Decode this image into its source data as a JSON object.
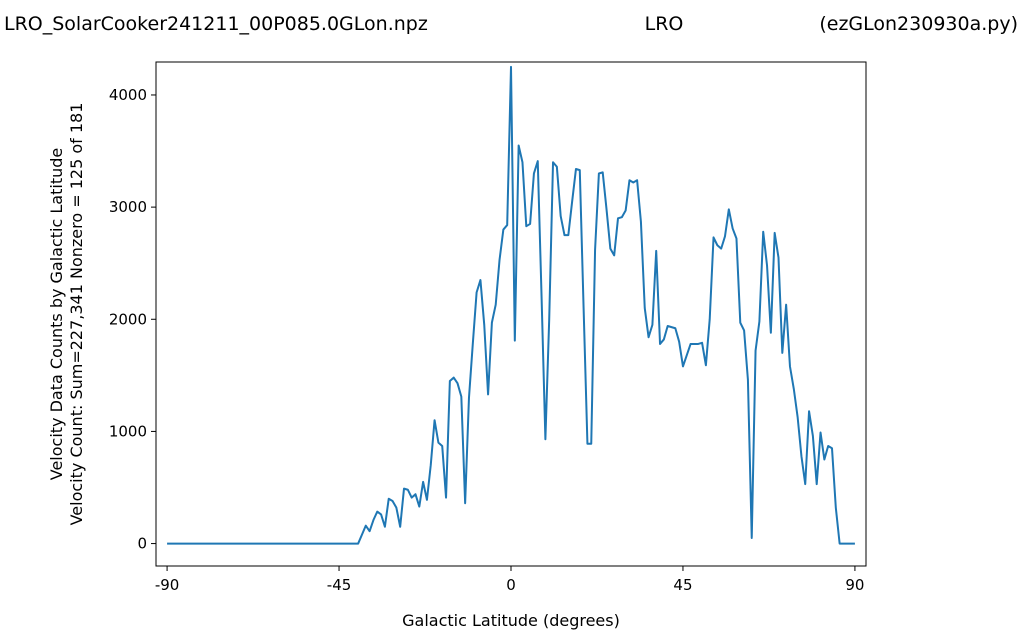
{
  "chart_data": {
    "type": "line",
    "title_left": "LRO_SolarCooker241211_00P085.0GLon.npz",
    "title_center": "LRO",
    "title_right": "(ezGLon230930a.py)",
    "xlabel": "Galactic Latitude (degrees)",
    "ylabel": [
      "Velocity Data Counts by Galactic Latitude",
      "Velocity Count: Sum=227,341 Nonzero = 125 of 181"
    ],
    "x": [
      -90,
      -89,
      -88,
      -87,
      -86,
      -85,
      -84,
      -83,
      -82,
      -81,
      -80,
      -79,
      -78,
      -77,
      -76,
      -75,
      -74,
      -73,
      -72,
      -71,
      -70,
      -69,
      -68,
      -67,
      -66,
      -65,
      -64,
      -63,
      -62,
      -61,
      -60,
      -59,
      -58,
      -57,
      -56,
      -55,
      -54,
      -53,
      -52,
      -51,
      -50,
      -49,
      -48,
      -47,
      -46,
      -45,
      -44,
      -43,
      -42,
      -41,
      -40,
      -39,
      -38,
      -37,
      -36,
      -35,
      -34,
      -33,
      -32,
      -31,
      -30,
      -29,
      -28,
      -27,
      -26,
      -25,
      -24,
      -23,
      -22,
      -21,
      -20,
      -19,
      -18,
      -17,
      -16,
      -15,
      -14,
      -13,
      -12,
      -11,
      -10,
      -9,
      -8,
      -7,
      -6,
      -5,
      -4,
      -3,
      -2,
      -1,
      0,
      1,
      2,
      3,
      4,
      5,
      6,
      7,
      8,
      9,
      10,
      11,
      12,
      13,
      14,
      15,
      16,
      17,
      18,
      19,
      20,
      21,
      22,
      23,
      24,
      25,
      26,
      27,
      28,
      29,
      30,
      31,
      32,
      33,
      34,
      35,
      36,
      37,
      38,
      39,
      40,
      41,
      42,
      43,
      44,
      45,
      46,
      47,
      48,
      49,
      50,
      51,
      52,
      53,
      54,
      55,
      56,
      57,
      58,
      59,
      60,
      61,
      62,
      63,
      64,
      65,
      66,
      67,
      68,
      69,
      70,
      71,
      72,
      73,
      74,
      75,
      76,
      77,
      78,
      79,
      80,
      81,
      82,
      83,
      84,
      85,
      86,
      87,
      88,
      89,
      90
    ],
    "series": [
      {
        "color": "#1f77b4",
        "values": [
          0,
          0,
          0,
          0,
          0,
          0,
          0,
          0,
          0,
          0,
          0,
          0,
          0,
          0,
          0,
          0,
          0,
          0,
          0,
          0,
          0,
          0,
          0,
          0,
          0,
          0,
          0,
          0,
          0,
          0,
          0,
          0,
          0,
          0,
          0,
          0,
          0,
          0,
          0,
          0,
          0,
          0,
          0,
          0,
          0,
          0,
          0,
          0,
          0,
          0,
          0,
          80,
          160,
          110,
          210,
          285,
          260,
          150,
          400,
          380,
          320,
          150,
          490,
          480,
          410,
          440,
          330,
          550,
          390,
          700,
          1100,
          900,
          870,
          410,
          1450,
          1480,
          1430,
          1310,
          360,
          1300,
          1780,
          2240,
          2350,
          1950,
          1330,
          1970,
          2130,
          2530,
          2800,
          2840,
          4250,
          1810,
          3550,
          3400,
          2830,
          2850,
          3300,
          3410,
          2200,
          930,
          2000,
          3400,
          3360,
          2920,
          2750,
          2750,
          3050,
          3340,
          3330,
          2100,
          890,
          890,
          2620,
          3300,
          3310,
          2980,
          2630,
          2570,
          2900,
          2910,
          2970,
          3240,
          3220,
          3240,
          2870,
          2100,
          1840,
          1950,
          2610,
          1780,
          1820,
          1940,
          1930,
          1920,
          1800,
          1580,
          1680,
          1780,
          1780,
          1780,
          1790,
          1590,
          2000,
          2730,
          2660,
          2630,
          2740,
          2980,
          2810,
          2720,
          1970,
          1900,
          1460,
          50,
          1720,
          1980,
          2780,
          2480,
          1880,
          2770,
          2550,
          1700,
          2130,
          1580,
          1380,
          1130,
          780,
          530,
          1180,
          960,
          530,
          990,
          750,
          870,
          850,
          320,
          0,
          0,
          0,
          0,
          0
        ]
      }
    ],
    "xlim": [
      -92.9,
      92.9
    ],
    "xticks": [
      -90,
      -45,
      0,
      45,
      90
    ],
    "ylim": [
      -200,
      4294
    ],
    "yticks": [
      0,
      1000,
      2000,
      3000,
      4000
    ],
    "grid": false
  }
}
